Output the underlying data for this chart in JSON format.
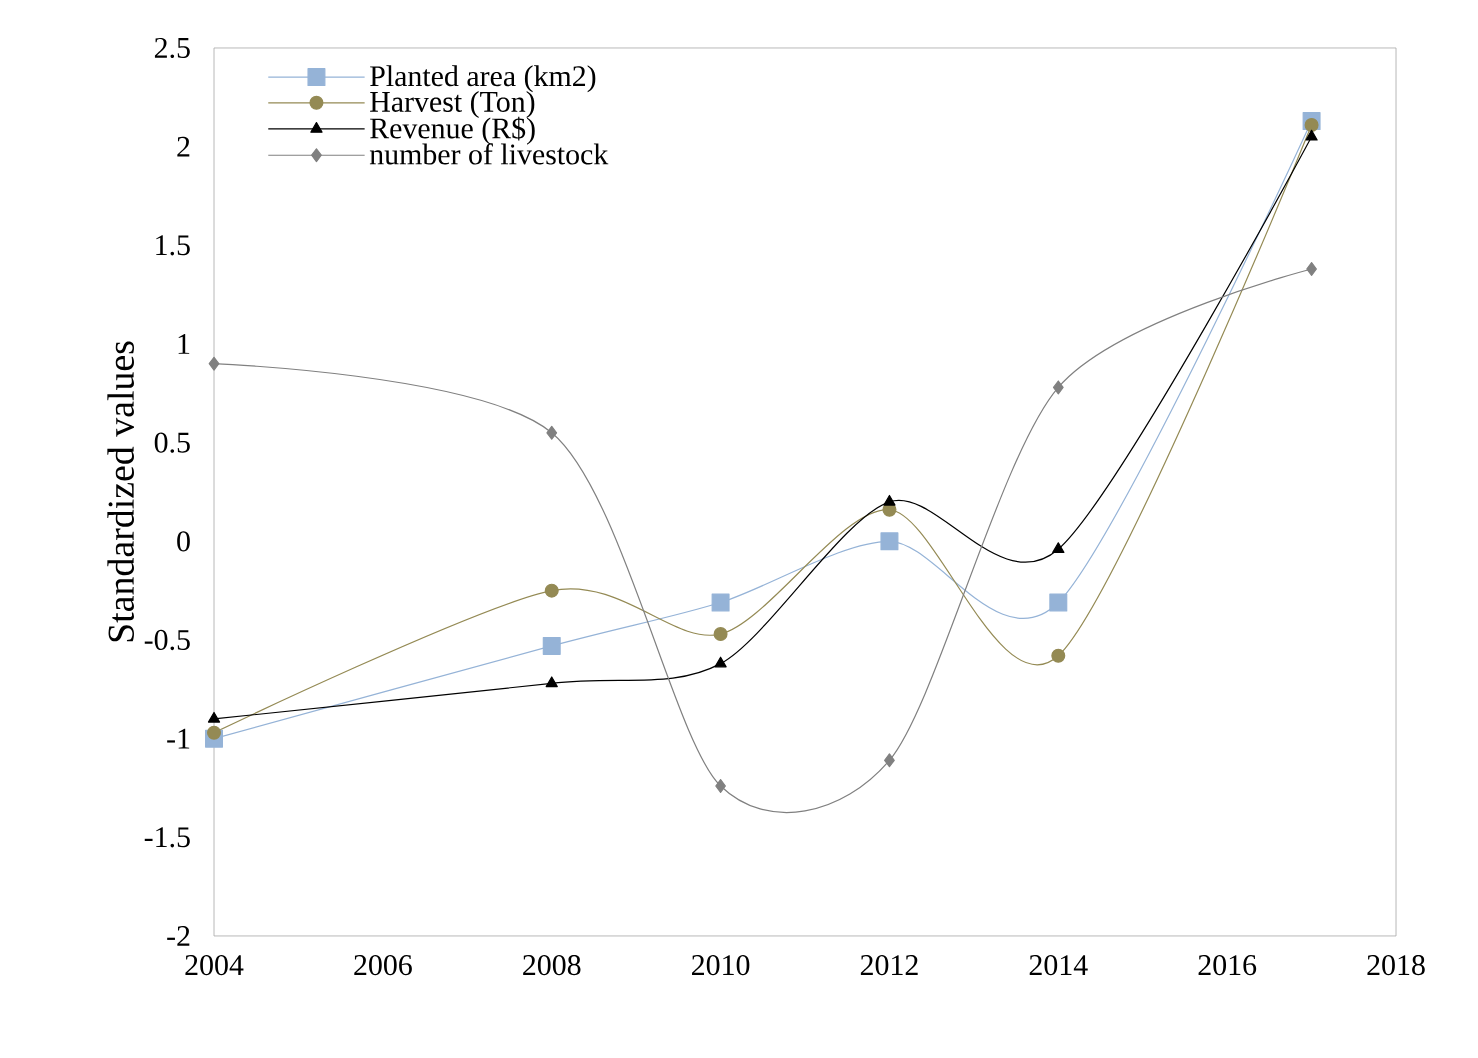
{
  "chart_data": {
    "type": "line",
    "xlabel": null,
    "ylabel": "Standardized values",
    "x": [
      2004,
      2008,
      2010,
      2012,
      2014,
      2017
    ],
    "series": [
      {
        "name": "Planted area (km2)",
        "color": "#95b3d7",
        "marker": "square",
        "values": [
          -1.0,
          -0.53,
          -0.31,
          0.0,
          -0.31,
          2.13
        ]
      },
      {
        "name": "Harvest (Ton)",
        "color": "#948a54",
        "marker": "circle",
        "values": [
          -0.97,
          -0.25,
          -0.47,
          0.16,
          -0.58,
          2.11
        ]
      },
      {
        "name": "Revenue (R$)",
        "color": "#000000",
        "marker": "triangle",
        "values": [
          -0.9,
          -0.72,
          -0.62,
          0.2,
          -0.04,
          2.05
        ]
      },
      {
        "name": "number of livestock",
        "color": "#808080",
        "marker": "diamond",
        "values": [
          0.9,
          0.55,
          -1.24,
          -1.11,
          0.78,
          1.38
        ]
      }
    ],
    "xlim": [
      2004,
      2018
    ],
    "xticks": [
      2004,
      2006,
      2008,
      2010,
      2012,
      2014,
      2016,
      2018
    ],
    "ylim": [
      -2,
      2.5
    ],
    "yticks": [
      -2,
      -1.5,
      -1,
      -0.5,
      0,
      0.5,
      1,
      1.5,
      2,
      2.5
    ],
    "grid": false,
    "legend": "top left",
    "line_style": "solid"
  }
}
